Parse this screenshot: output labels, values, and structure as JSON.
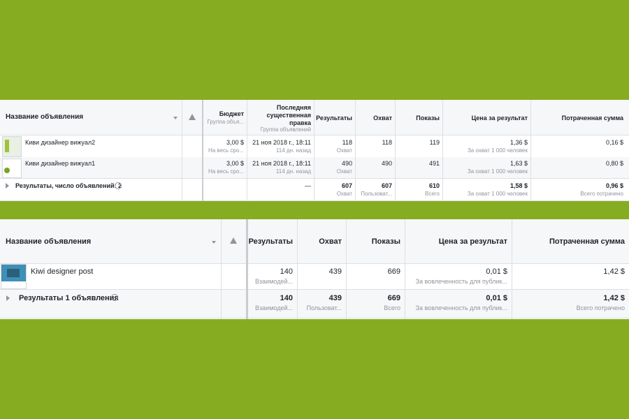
{
  "top_table": {
    "headers": {
      "ad_name": "Название объявления",
      "budget": "Бюджет",
      "budget_sub": "Группа объя...",
      "last_edit_l1": "Последняя",
      "last_edit_l2": "существенная",
      "last_edit_l3": "правка",
      "last_edit_sub": "Группа объявлений",
      "results": "Результаты",
      "reach": "Охват",
      "impressions": "Показы",
      "cost_per_result": "Цена за результат",
      "amount_spent": "Потраченная сумма"
    },
    "rows": [
      {
        "name": "Киви дизайнер вижуал2",
        "budget": "3,00 $",
        "budget_sub": "На весь сро...",
        "last_edit": "21 ноя 2018 г., 18:11",
        "last_edit_sub": "114 дн. назад",
        "results": "118",
        "results_sub": "Охват",
        "reach": "118",
        "impressions": "119",
        "cost": "1,36 $",
        "cost_sub": "За охват 1 000 человек",
        "spent": "0,16 $"
      },
      {
        "name": "Киви дизайнер вижуал1",
        "budget": "3,00 $",
        "budget_sub": "На весь сро...",
        "last_edit": "21 ноя 2018 г., 18:11",
        "last_edit_sub": "114 дн. назад",
        "results": "490",
        "results_sub": "Охват",
        "reach": "490",
        "impressions": "491",
        "cost": "1,63 $",
        "cost_sub": "За охват 1 000 человек",
        "spent": "0,80 $"
      }
    ],
    "summary": {
      "label": "Результаты, число объявлений: 2",
      "last_edit": "—",
      "results": "607",
      "results_sub": "Охват",
      "reach": "607",
      "reach_sub": "Пользоват...",
      "impressions": "610",
      "impressions_sub": "Всего",
      "cost": "1,58 $",
      "cost_sub": "За охват 1 000 человек",
      "spent": "0,96 $",
      "spent_sub": "Всего потрачено"
    }
  },
  "bottom_table": {
    "headers": {
      "ad_name": "Название объявления",
      "results": "Результаты",
      "reach": "Охват",
      "impressions": "Показы",
      "cost_per_result": "Цена за результат",
      "amount_spent": "Потраченная сумма"
    },
    "row": {
      "name": "Kiwi designer post",
      "results": "140",
      "results_sub": "Взаимодей...",
      "reach": "439",
      "impressions": "669",
      "cost": "0,01 $",
      "cost_sub": "За вовлеченность для публик...",
      "spent": "1,42 $"
    },
    "summary": {
      "label": "Результаты 1 объявления",
      "results": "140",
      "results_sub": "Взаимодей...",
      "reach": "439",
      "reach_sub": "Пользоват...",
      "impressions": "669",
      "impressions_sub": "Всего",
      "cost": "0,01 $",
      "cost_sub": "За вовлеченность для публик...",
      "spent": "1,42 $",
      "spent_sub": "Всего потрачено"
    }
  },
  "colors": {
    "background": "#86ad22",
    "border": "#dddfe2",
    "muted_text": "#90949c",
    "row_alt": "#f6f7f9"
  },
  "icons": [
    "warning-icon",
    "sort-caret-icon",
    "expand-arrow-icon",
    "info-icon"
  ]
}
